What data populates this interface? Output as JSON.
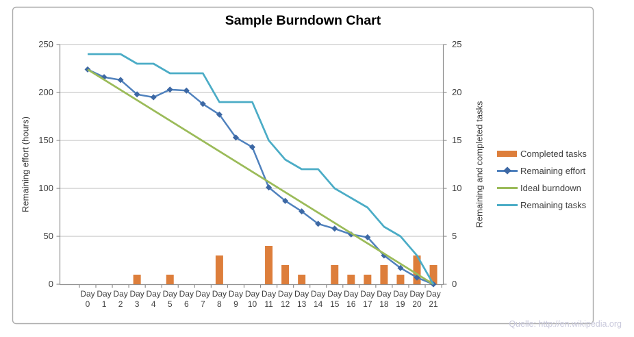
{
  "chart_data": {
    "type": "combo",
    "title": "Sample Burndown Chart",
    "category_prefix": "Day",
    "categories": [
      "0",
      "1",
      "2",
      "3",
      "4",
      "5",
      "6",
      "7",
      "8",
      "9",
      "10",
      "11",
      "12",
      "13",
      "14",
      "15",
      "16",
      "17",
      "18",
      "19",
      "20",
      "21"
    ],
    "left_axis": {
      "label": "Remaining effort (hours)",
      "range": [
        0,
        250
      ],
      "ticks": [
        0,
        50,
        100,
        150,
        200,
        250
      ]
    },
    "right_axis": {
      "label": "Remaining and completed tasks",
      "range": [
        0,
        25
      ],
      "ticks": [
        0,
        5,
        10,
        15,
        20,
        25
      ]
    },
    "grid": "horizontal",
    "legend_position": "right",
    "series": [
      {
        "name": "Completed tasks",
        "type": "bar",
        "axis": "right",
        "color": "#DD7E3B",
        "values": [
          null,
          null,
          null,
          1,
          null,
          1,
          null,
          null,
          3,
          null,
          null,
          4,
          2,
          1,
          null,
          2,
          1,
          1,
          2,
          1,
          3,
          2
        ]
      },
      {
        "name": "Remaining effort",
        "type": "line",
        "marker": "diamond",
        "axis": "left",
        "color": "#4F81BD",
        "marker_color": "#3D68A4",
        "values": [
          224,
          216,
          213,
          198,
          195,
          203,
          202,
          188,
          177,
          153,
          143,
          101,
          87,
          76,
          63,
          58,
          52,
          49,
          30,
          17,
          7,
          0
        ]
      },
      {
        "name": "Ideal burndown",
        "type": "line",
        "axis": "left",
        "color": "#9BBB59",
        "values": [
          224,
          null,
          null,
          null,
          null,
          null,
          null,
          null,
          null,
          null,
          null,
          null,
          null,
          null,
          null,
          null,
          null,
          null,
          null,
          null,
          null,
          0
        ]
      },
      {
        "name": "Remaining tasks",
        "type": "line",
        "axis": "right",
        "color": "#4BACC6",
        "values": [
          24,
          24,
          24,
          23,
          23,
          22,
          22,
          22,
          19,
          19,
          19,
          15,
          13,
          12,
          12,
          10,
          9,
          8,
          6,
          5,
          3,
          0
        ]
      }
    ],
    "colors": {
      "grid": "#C9C9C9",
      "axis": "#8F8F8F",
      "frame": "#ABABAB",
      "text": "#3F3F3F",
      "watermark": "#C9C9DC"
    },
    "source_note": "Quelle: http://en.wikipedia.org"
  }
}
